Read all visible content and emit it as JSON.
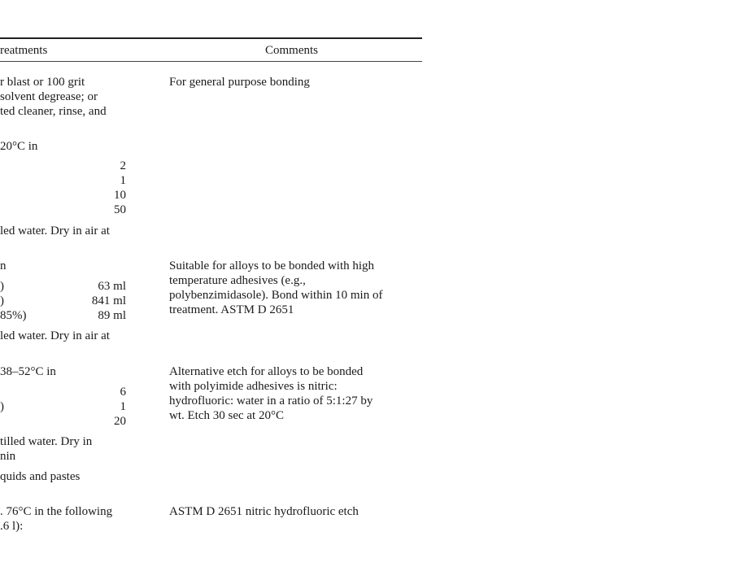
{
  "table": {
    "headers": {
      "treatments": "reatments",
      "comments": "Comments"
    },
    "rows": [
      {
        "treatment_lines": [
          "r blast or 100 grit",
          "solvent degrease; or",
          "ted cleaner, rinse, and",
          "20°C in"
        ],
        "components": [
          {
            "label": "",
            "amount": "2"
          },
          {
            "label": "",
            "amount": "1"
          },
          {
            "label": "",
            "amount": "10"
          },
          {
            "label": "",
            "amount": "50"
          }
        ],
        "after_lines": [
          "led water. Dry in air at"
        ],
        "comment_lines": [
          "For general purpose bonding"
        ]
      },
      {
        "treatment_lines": [
          "n"
        ],
        "components": [
          {
            "label": ")",
            "amount": "63 ml"
          },
          {
            "label": ")",
            "amount": "841 ml"
          },
          {
            "label": "85%)",
            "amount": "89 ml"
          }
        ],
        "after_lines": [
          "led water. Dry in air at"
        ],
        "comment_lines": [
          "Suitable for alloys to be bonded with high",
          "temperature adhesives (e.g.,",
          "polybenzimidasole). Bond within 10 min of",
          "treatment. ASTM D 2651"
        ]
      },
      {
        "treatment_lines": [
          " 38–52°C in"
        ],
        "components": [
          {
            "label": "",
            "amount": "6"
          },
          {
            "label": ")",
            "amount": "1"
          },
          {
            "label": "",
            "amount": "20"
          }
        ],
        "after_lines": [
          "tilled water. Dry in",
          "nin",
          "quids and pastes"
        ],
        "comment_lines": [
          "Alternative etch for alloys to be bonded",
          "with polyimide adhesives is nitric:",
          "hydrofluoric: water in a ratio of 5:1:27 by",
          "wt. Etch 30 sec at 20°C"
        ]
      },
      {
        "treatment_lines": [
          ". 76°C in the following",
          ".6 l):"
        ],
        "components": [],
        "after_lines": [],
        "comment_lines": [
          "ASTM D 2651 nitric hydrofluoric etch"
        ]
      }
    ]
  }
}
